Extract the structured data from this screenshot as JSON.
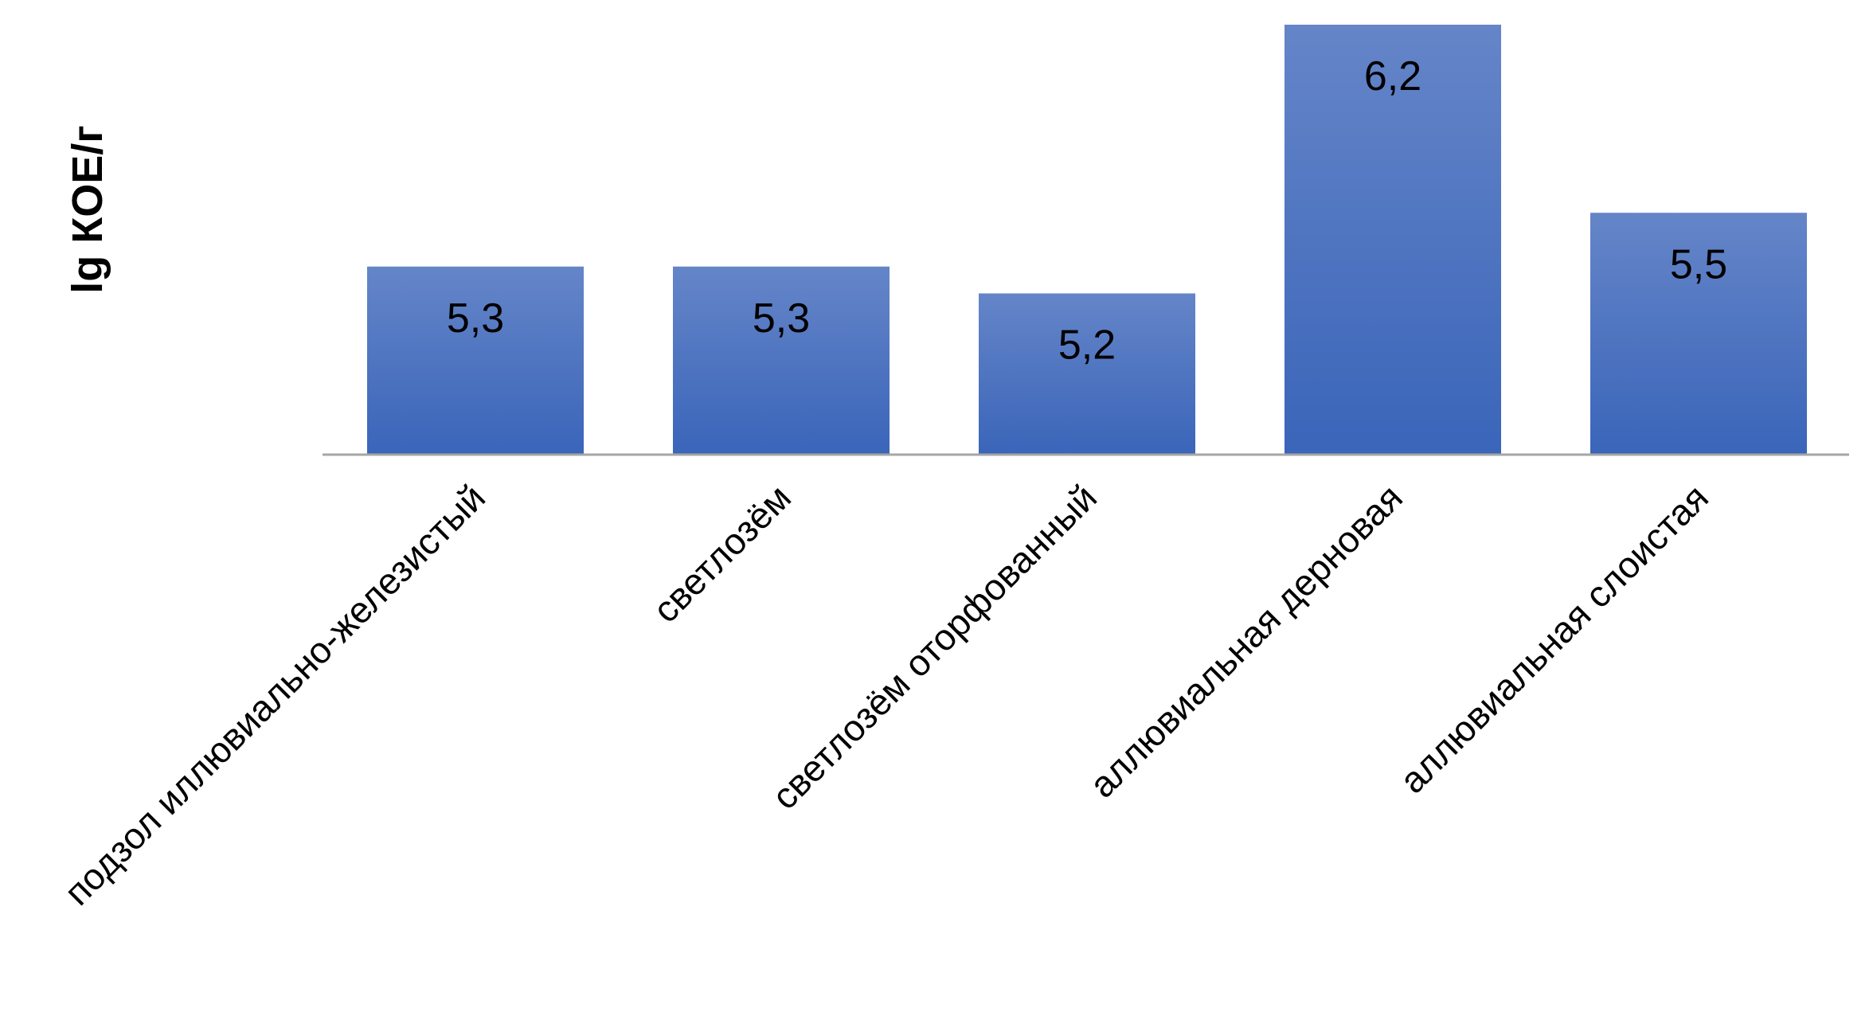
{
  "chart_data": {
    "type": "bar",
    "categories": [
      "подзол иллювиально-железистый",
      "светлозём",
      "светлозём оторфованный",
      "аллювиальная дерновая",
      "аллювиальная слоистая"
    ],
    "values": [
      5.3,
      5.3,
      5.2,
      6.2,
      5.5
    ],
    "data_labels": [
      "5,3",
      "5,3",
      "5,2",
      "6,2",
      "5,5"
    ],
    "title": "",
    "xlabel": "",
    "ylabel": "lg КОЕ/г",
    "ylim": [
      4.6,
      6.2
    ],
    "grid": false,
    "legend": "none",
    "colors": {
      "bar_top": "#6585c8",
      "bar_bottom": "#3a65b9",
      "axis": "#a6a6a6"
    }
  }
}
